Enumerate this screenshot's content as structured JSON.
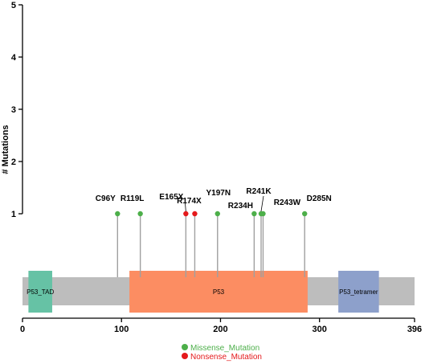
{
  "chart_data": {
    "type": "lollipop",
    "ylabel": "# Mutations",
    "ylim": [
      0,
      5
    ],
    "yticks": [
      1,
      2,
      3,
      4,
      5
    ],
    "xlim": [
      0,
      396
    ],
    "xticks": [
      0,
      100,
      200,
      300,
      396
    ],
    "protein_length": 396,
    "mutations": [
      {
        "label": "C96Y",
        "position": 96,
        "count": 1,
        "type": "Missense_Mutation"
      },
      {
        "label": "R119L",
        "position": 119,
        "count": 1,
        "type": "Missense_Mutation"
      },
      {
        "label": "E165X",
        "position": 165,
        "count": 1,
        "type": "Nonsense_Mutation"
      },
      {
        "label": "R174X",
        "position": 174,
        "count": 1,
        "type": "Nonsense_Mutation"
      },
      {
        "label": "Y197N",
        "position": 197,
        "count": 1,
        "type": "Missense_Mutation"
      },
      {
        "label": "R234H",
        "position": 234,
        "count": 1,
        "type": "Missense_Mutation"
      },
      {
        "label": "R241K",
        "position": 241,
        "count": 1,
        "type": "Missense_Mutation"
      },
      {
        "label": "R243W",
        "position": 243,
        "count": 1,
        "type": "Missense_Mutation"
      },
      {
        "label": "D285N",
        "position": 285,
        "count": 1,
        "type": "Missense_Mutation"
      }
    ],
    "domains": [
      {
        "name": "P53_TAD",
        "start": 6,
        "end": 30,
        "color": "#66c2a5"
      },
      {
        "name": "P53",
        "start": 108,
        "end": 288,
        "color": "#fc8d62"
      },
      {
        "name": "P53_tetramer",
        "start": 319,
        "end": 360,
        "color": "#8da0cb"
      }
    ],
    "backbone_color": "#bdbdbd",
    "legend": [
      {
        "name": "Missense_Mutation",
        "color": "#4daf4a"
      },
      {
        "name": "Nonsense_Mutation",
        "color": "#e41a1c"
      }
    ],
    "legend_placement": "bottom-center"
  }
}
